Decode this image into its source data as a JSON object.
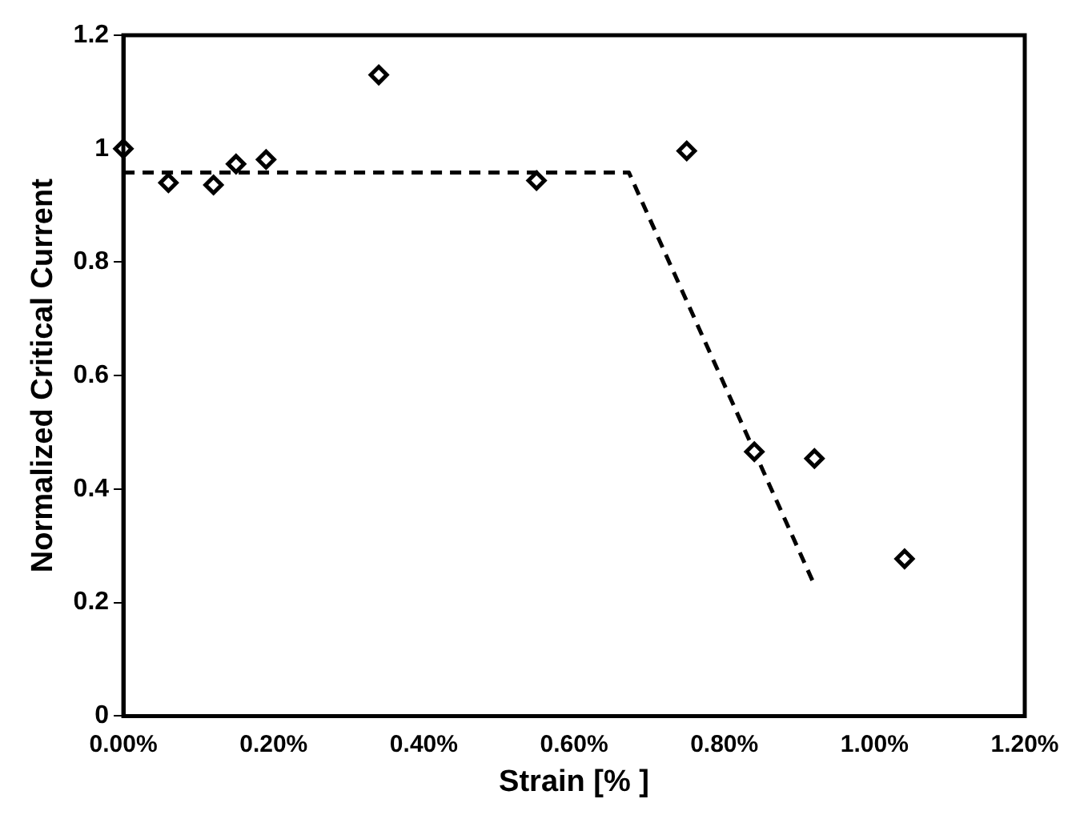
{
  "chart_data": {
    "type": "scatter",
    "xlabel": "Strain [% ]",
    "ylabel": "Normalized Critical Current",
    "xlim": [
      0,
      1.2
    ],
    "ylim": [
      0,
      1.2
    ],
    "xticks": [
      {
        "value": 0,
        "label": "0.00%"
      },
      {
        "value": 0.2,
        "label": "0.20%"
      },
      {
        "value": 0.4,
        "label": "0.40%"
      },
      {
        "value": 0.6,
        "label": "0.60%"
      },
      {
        "value": 0.8,
        "label": "0.80%"
      },
      {
        "value": 1.0,
        "label": "1.00%"
      },
      {
        "value": 1.2,
        "label": "1.20%"
      }
    ],
    "yticks": [
      0,
      0.2,
      0.4,
      0.6,
      0.8,
      1,
      1.2
    ],
    "grid": false,
    "legend": false,
    "series": [
      {
        "type": "scatter",
        "color": "#000000",
        "marker": "diamond",
        "x": [
          0,
          0.06,
          0.12,
          0.15,
          0.19,
          0.34,
          0.55,
          0.75,
          0.84,
          0.92,
          1.04
        ],
        "values": [
          1.0,
          0.94,
          0.936,
          0.973,
          0.981,
          1.13,
          0.944,
          0.996,
          0.466,
          0.454,
          0.277
        ]
      },
      {
        "type": "line",
        "color": "#000000",
        "marker": "none",
        "line_style": "dashed",
        "x": [
          0,
          0.673,
          0.919
        ],
        "values": [
          0.958,
          0.958,
          0.234
        ]
      }
    ]
  }
}
